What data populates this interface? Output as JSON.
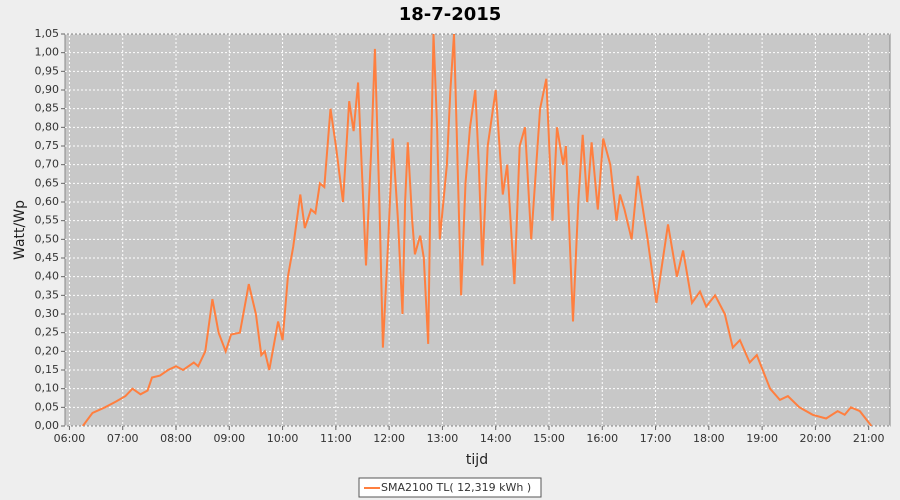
{
  "chart_data": {
    "type": "line",
    "title": "18-7-2015",
    "x_label": "tijd",
    "y_label": "Watt/Wp",
    "grid": true,
    "legend": "bottom",
    "xlim": [
      "05:55",
      "21:24"
    ],
    "xticks": [
      "06:00",
      "07:00",
      "08:00",
      "09:00",
      "10:00",
      "11:00",
      "12:00",
      "13:00",
      "14:00",
      "15:00",
      "16:00",
      "17:00",
      "18:00",
      "19:00",
      "20:00",
      "21:00"
    ],
    "ylim": [
      0,
      1.05
    ],
    "yticks": [
      {
        "value": 0,
        "label": "0,00"
      },
      {
        "value": 0.05,
        "label": "0,05"
      },
      {
        "value": 0.1,
        "label": "0,10"
      },
      {
        "value": 0.15,
        "label": "0,15"
      },
      {
        "value": 0.2,
        "label": "0,20"
      },
      {
        "value": 0.25,
        "label": "0,25"
      },
      {
        "value": 0.3,
        "label": "0,30"
      },
      {
        "value": 0.35,
        "label": "0,35"
      },
      {
        "value": 0.4,
        "label": "0,40"
      },
      {
        "value": 0.45,
        "label": "0,45"
      },
      {
        "value": 0.5,
        "label": "0,50"
      },
      {
        "value": 0.55,
        "label": "0,55"
      },
      {
        "value": 0.6,
        "label": "0,60"
      },
      {
        "value": 0.65,
        "label": "0,65"
      },
      {
        "value": 0.7,
        "label": "0,70"
      },
      {
        "value": 0.75,
        "label": "0,75"
      },
      {
        "value": 0.8,
        "label": "0,80"
      },
      {
        "value": 0.85,
        "label": "0,85"
      },
      {
        "value": 0.9,
        "label": "0,90"
      },
      {
        "value": 0.95,
        "label": "0,95"
      },
      {
        "value": 1.0,
        "label": "1,00"
      },
      {
        "value": 1.05,
        "label": "1,05"
      }
    ],
    "x": [
      "06:15",
      "06:26",
      "06:40",
      "06:52",
      "07:03",
      "07:11",
      "07:20",
      "07:28",
      "07:33",
      "07:42",
      "07:51",
      "08:00",
      "08:08",
      "08:20",
      "08:25",
      "08:33",
      "08:41",
      "08:48",
      "08:56",
      "09:02",
      "09:12",
      "09:22",
      "09:30",
      "09:36",
      "09:40",
      "09:45",
      "09:55",
      "10:00",
      "10:06",
      "10:12",
      "10:20",
      "10:25",
      "10:32",
      "10:37",
      "10:42",
      "10:47",
      "10:54",
      "11:00",
      "11:08",
      "11:15",
      "11:20",
      "11:25",
      "11:34",
      "11:40",
      "11:44",
      "11:49",
      "11:53",
      "11:59",
      "12:04",
      "12:10",
      "12:15",
      "12:18",
      "12:21",
      "12:26",
      "12:29",
      "12:35",
      "12:39",
      "12:44",
      "12:47",
      "12:50",
      "12:54",
      "12:57",
      "13:05",
      "13:09",
      "13:13",
      "13:16",
      "13:21",
      "13:26",
      "13:31",
      "13:37",
      "13:41",
      "13:45",
      "13:51",
      "14:00",
      "14:08",
      "14:13",
      "14:21",
      "14:27",
      "14:33",
      "14:40",
      "14:50",
      "14:57",
      "15:04",
      "15:09",
      "15:16",
      "15:19",
      "15:27",
      "15:33",
      "15:38",
      "15:43",
      "15:48",
      "15:55",
      "16:01",
      "16:09",
      "16:16",
      "16:20",
      "16:25",
      "16:33",
      "16:40",
      "16:51",
      "17:01",
      "17:14",
      "17:24",
      "17:31",
      "17:41",
      "17:50",
      "17:57",
      "18:07",
      "18:18",
      "18:27",
      "18:35",
      "18:46",
      "18:54",
      "19:09",
      "19:20",
      "19:29",
      "19:42",
      "19:57",
      "20:12",
      "20:25",
      "20:33",
      "20:40",
      "20:50",
      "21:03"
    ],
    "series": [
      {
        "name": "SMA2100 TL( 12,319 kWh )",
        "color": "#ff7f3f",
        "values": [
          0,
          0.035,
          0.05,
          0.065,
          0.08,
          0.1,
          0.085,
          0.095,
          0.13,
          0.135,
          0.15,
          0.16,
          0.15,
          0.17,
          0.16,
          0.2,
          0.34,
          0.25,
          0.2,
          0.245,
          0.25,
          0.38,
          0.3,
          0.19,
          0.2,
          0.15,
          0.28,
          0.23,
          0.4,
          0.48,
          0.62,
          0.53,
          0.58,
          0.57,
          0.65,
          0.64,
          0.85,
          0.75,
          0.6,
          0.87,
          0.79,
          0.92,
          0.43,
          0.75,
          1.01,
          0.6,
          0.21,
          0.5,
          0.77,
          0.55,
          0.3,
          0.6,
          0.76,
          0.55,
          0.46,
          0.51,
          0.45,
          0.22,
          0.7,
          1.05,
          0.8,
          0.5,
          0.7,
          0.9,
          1.05,
          0.8,
          0.35,
          0.65,
          0.8,
          0.9,
          0.7,
          0.43,
          0.75,
          0.9,
          0.62,
          0.7,
          0.38,
          0.75,
          0.8,
          0.5,
          0.85,
          0.93,
          0.55,
          0.8,
          0.7,
          0.75,
          0.28,
          0.6,
          0.78,
          0.6,
          0.76,
          0.58,
          0.77,
          0.7,
          0.55,
          0.62,
          0.58,
          0.5,
          0.67,
          0.5,
          0.33,
          0.54,
          0.4,
          0.47,
          0.33,
          0.36,
          0.32,
          0.35,
          0.3,
          0.21,
          0.23,
          0.17,
          0.19,
          0.1,
          0.07,
          0.08,
          0.05,
          0.03,
          0.02,
          0.04,
          0.03,
          0.05,
          0.04,
          0
        ]
      }
    ]
  }
}
